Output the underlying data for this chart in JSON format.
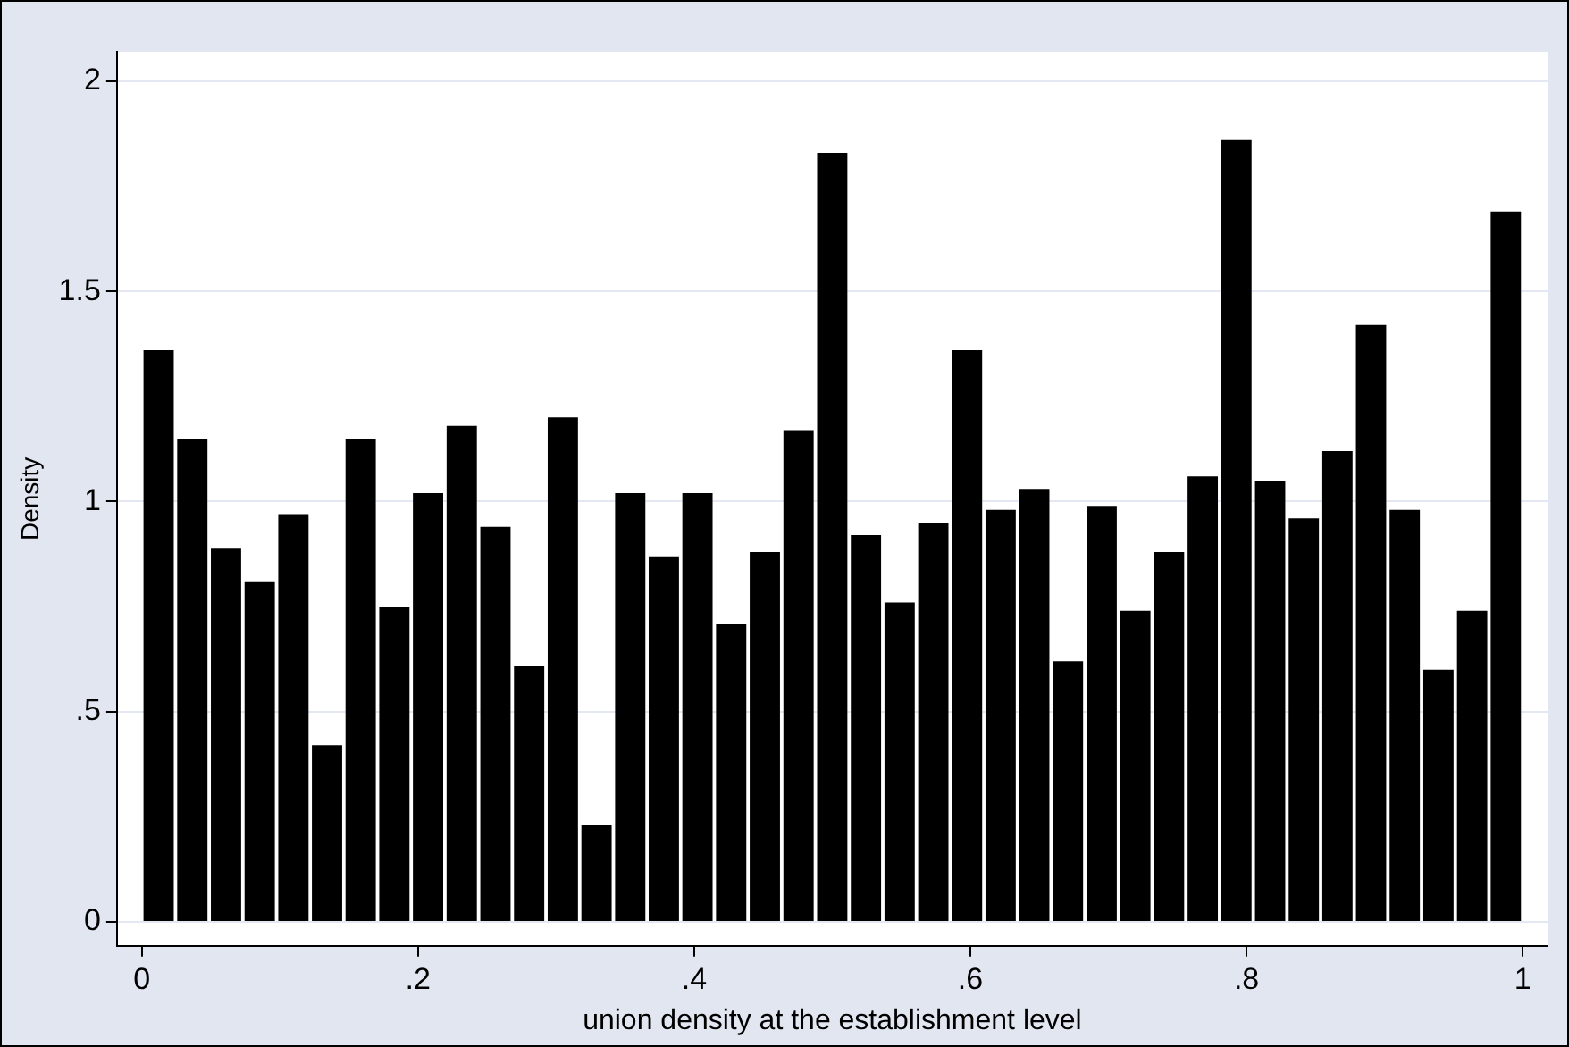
{
  "chart_data": {
    "type": "histogram",
    "xlabel": "union density at the establishment level",
    "ylabel": "Density",
    "bins": [
      0,
      0.0244,
      0.0488,
      0.0732,
      0.0976,
      0.122,
      0.1463,
      0.1707,
      0.1951,
      0.2195,
      0.2439,
      0.2683,
      0.2927,
      0.3171,
      0.3415,
      0.3659,
      0.3902,
      0.4146,
      0.439,
      0.4634,
      0.4878,
      0.5122,
      0.5366,
      0.561,
      0.5854,
      0.6098,
      0.6341,
      0.6585,
      0.6829,
      0.7073,
      0.7317,
      0.7561,
      0.7805,
      0.8049,
      0.8293,
      0.8537,
      0.878,
      0.9024,
      0.9268,
      0.9512,
      0.9756,
      1
    ],
    "values": [
      1.36,
      1.15,
      0.89,
      0.81,
      0.97,
      0.42,
      1.15,
      0.75,
      1.02,
      1.18,
      0.94,
      0.61,
      1.2,
      0.23,
      1.02,
      0.87,
      1.02,
      0.71,
      0.88,
      1.17,
      1.83,
      0.92,
      0.76,
      0.95,
      1.36,
      0.98,
      1.03,
      0.62,
      0.99,
      0.74,
      0.88,
      1.06,
      1.86,
      1.05,
      0.96,
      1.12,
      1.42,
      0.98,
      0.6,
      0.74,
      1.69
    ],
    "color": "#000000",
    "xlim": [
      -0.018,
      1.018
    ],
    "xticks": [
      {
        "value": 0,
        "label": "0"
      },
      {
        "value": 0.2,
        "label": ".2"
      },
      {
        "value": 0.4,
        "label": ".4"
      },
      {
        "value": 0.6,
        "label": ".6"
      },
      {
        "value": 0.8,
        "label": ".8"
      },
      {
        "value": 1,
        "label": "1"
      }
    ],
    "ylim": [
      -0.057,
      2.07
    ],
    "yticks": [
      {
        "value": 0,
        "label": "0"
      },
      {
        "value": 0.5,
        "label": ".5"
      },
      {
        "value": 1,
        "label": "1"
      },
      {
        "value": 1.5,
        "label": "1.5"
      },
      {
        "value": 2,
        "label": "2"
      }
    ],
    "grid": "y",
    "legend": false
  }
}
